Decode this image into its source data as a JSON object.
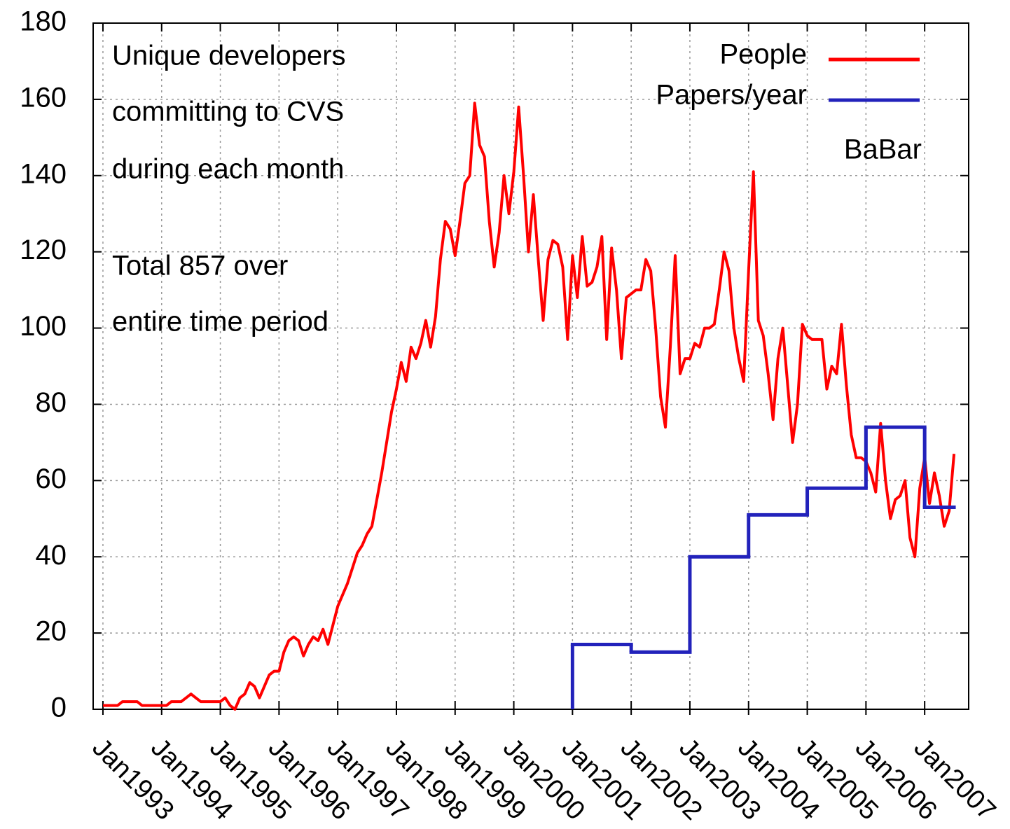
{
  "chart_data": {
    "type": "line",
    "annotations": [
      "Unique developers",
      "committing to CVS",
      "during each month",
      "Total 857 over",
      "entire time period"
    ],
    "label": "BaBar",
    "xlim": [
      "1992-11",
      "2007-10"
    ],
    "xticks": [
      {
        "value": "1993-01",
        "label": "Jan1993"
      },
      {
        "value": "1994-01",
        "label": "Jan1994"
      },
      {
        "value": "1995-01",
        "label": "Jan1995"
      },
      {
        "value": "1996-01",
        "label": "Jan1996"
      },
      {
        "value": "1997-01",
        "label": "Jan1997"
      },
      {
        "value": "1998-01",
        "label": "Jan1998"
      },
      {
        "value": "1999-01",
        "label": "Jan1999"
      },
      {
        "value": "2000-01",
        "label": "Jan2000"
      },
      {
        "value": "2001-01",
        "label": "Jan2001"
      },
      {
        "value": "2002-01",
        "label": "Jan2002"
      },
      {
        "value": "2003-01",
        "label": "Jan2003"
      },
      {
        "value": "2004-01",
        "label": "Jan2004"
      },
      {
        "value": "2005-01",
        "label": "Jan2005"
      },
      {
        "value": "2006-01",
        "label": "Jan2006"
      },
      {
        "value": "2007-01",
        "label": "Jan2007"
      }
    ],
    "ylim": [
      0,
      180
    ],
    "yticks": [
      0,
      20,
      40,
      60,
      80,
      100,
      120,
      140,
      160,
      180
    ],
    "grid": true,
    "legend": "top-right",
    "series": [
      {
        "name": "People",
        "color": "#ff0000",
        "style": "line",
        "x": [
          "1993-01",
          "1993-02",
          "1993-03",
          "1993-04",
          "1993-05",
          "1993-06",
          "1993-07",
          "1993-08",
          "1993-09",
          "1993-10",
          "1993-11",
          "1993-12",
          "1994-01",
          "1994-02",
          "1994-03",
          "1994-04",
          "1994-05",
          "1994-06",
          "1994-07",
          "1994-08",
          "1994-09",
          "1994-10",
          "1994-11",
          "1994-12",
          "1995-01",
          "1995-02",
          "1995-03",
          "1995-04",
          "1995-05",
          "1995-06",
          "1995-07",
          "1995-08",
          "1995-09",
          "1995-10",
          "1995-11",
          "1995-12",
          "1996-01",
          "1996-02",
          "1996-03",
          "1996-04",
          "1996-05",
          "1996-06",
          "1996-07",
          "1996-08",
          "1996-09",
          "1996-10",
          "1996-11",
          "1996-12",
          "1997-01",
          "1997-02",
          "1997-03",
          "1997-04",
          "1997-05",
          "1997-06",
          "1997-07",
          "1997-08",
          "1997-09",
          "1997-10",
          "1997-11",
          "1997-12",
          "1998-01",
          "1998-02",
          "1998-03",
          "1998-04",
          "1998-05",
          "1998-06",
          "1998-07",
          "1998-08",
          "1998-09",
          "1998-10",
          "1998-11",
          "1998-12",
          "1999-01",
          "1999-02",
          "1999-03",
          "1999-04",
          "1999-05",
          "1999-06",
          "1999-07",
          "1999-08",
          "1999-09",
          "1999-10",
          "1999-11",
          "1999-12",
          "2000-01",
          "2000-02",
          "2000-03",
          "2000-04",
          "2000-05",
          "2000-06",
          "2000-07",
          "2000-08",
          "2000-09",
          "2000-10",
          "2000-11",
          "2000-12",
          "2001-01",
          "2001-02",
          "2001-03",
          "2001-04",
          "2001-05",
          "2001-06",
          "2001-07",
          "2001-08",
          "2001-09",
          "2001-10",
          "2001-11",
          "2001-12",
          "2002-01",
          "2002-02",
          "2002-03",
          "2002-04",
          "2002-05",
          "2002-06",
          "2002-07",
          "2002-08",
          "2002-09",
          "2002-10",
          "2002-11",
          "2002-12",
          "2003-01",
          "2003-02",
          "2003-03",
          "2003-04",
          "2003-05",
          "2003-06",
          "2003-07",
          "2003-08",
          "2003-09",
          "2003-10",
          "2003-11",
          "2003-12",
          "2004-01",
          "2004-02",
          "2004-03",
          "2004-04",
          "2004-05",
          "2004-06",
          "2004-07",
          "2004-08",
          "2004-09",
          "2004-10",
          "2004-11",
          "2004-12",
          "2005-01",
          "2005-02",
          "2005-03",
          "2005-04",
          "2005-05",
          "2005-06",
          "2005-07",
          "2005-08",
          "2005-09",
          "2005-10",
          "2005-11",
          "2005-12",
          "2006-01",
          "2006-02",
          "2006-03",
          "2006-04",
          "2006-05",
          "2006-06",
          "2006-07",
          "2006-08",
          "2006-09",
          "2006-10",
          "2006-11",
          "2006-12",
          "2007-01",
          "2007-02",
          "2007-03",
          "2007-04",
          "2007-05",
          "2007-06",
          "2007-07"
        ],
        "values": [
          1,
          1,
          1,
          1,
          2,
          2,
          2,
          2,
          1,
          1,
          1,
          1,
          1,
          1,
          2,
          2,
          2,
          3,
          4,
          3,
          2,
          2,
          2,
          2,
          2,
          3,
          1,
          0,
          3,
          4,
          7,
          6,
          3,
          6,
          9,
          10,
          10,
          15,
          18,
          19,
          18,
          14,
          17,
          19,
          18,
          21,
          17,
          22,
          27,
          30,
          33,
          37,
          41,
          43,
          46,
          48,
          55,
          62,
          70,
          78,
          84,
          91,
          86,
          95,
          92,
          96,
          102,
          95,
          103,
          118,
          128,
          126,
          119,
          128,
          138,
          140,
          159,
          148,
          145,
          128,
          116,
          125,
          140,
          130,
          141,
          158,
          140,
          120,
          135,
          118,
          102,
          118,
          123,
          122,
          116,
          97,
          119,
          108,
          124,
          111,
          112,
          116,
          124,
          97,
          121,
          110,
          92,
          108,
          109,
          110,
          110,
          118,
          115,
          100,
          82,
          74,
          95,
          119,
          88,
          92,
          92,
          96,
          95,
          100,
          100,
          101,
          110,
          120,
          115,
          100,
          92,
          86,
          115,
          141,
          102,
          98,
          88,
          76,
          92,
          100,
          85,
          70,
          80,
          101,
          98,
          97,
          97,
          97,
          84,
          90,
          88,
          101,
          85,
          72,
          66,
          66,
          65,
          62,
          57,
          75,
          60,
          50,
          55,
          56,
          60,
          45,
          40,
          58,
          66,
          54,
          62,
          56,
          48,
          52,
          67
        ]
      },
      {
        "name": "Papers/year",
        "color": "#2222bb",
        "style": "steps",
        "x": [
          "2001-01",
          "2002-01",
          "2003-01",
          "2004-01",
          "2005-01",
          "2006-01",
          "2007-01"
        ],
        "values": [
          17,
          15,
          40,
          51,
          58,
          74,
          53
        ]
      }
    ]
  }
}
